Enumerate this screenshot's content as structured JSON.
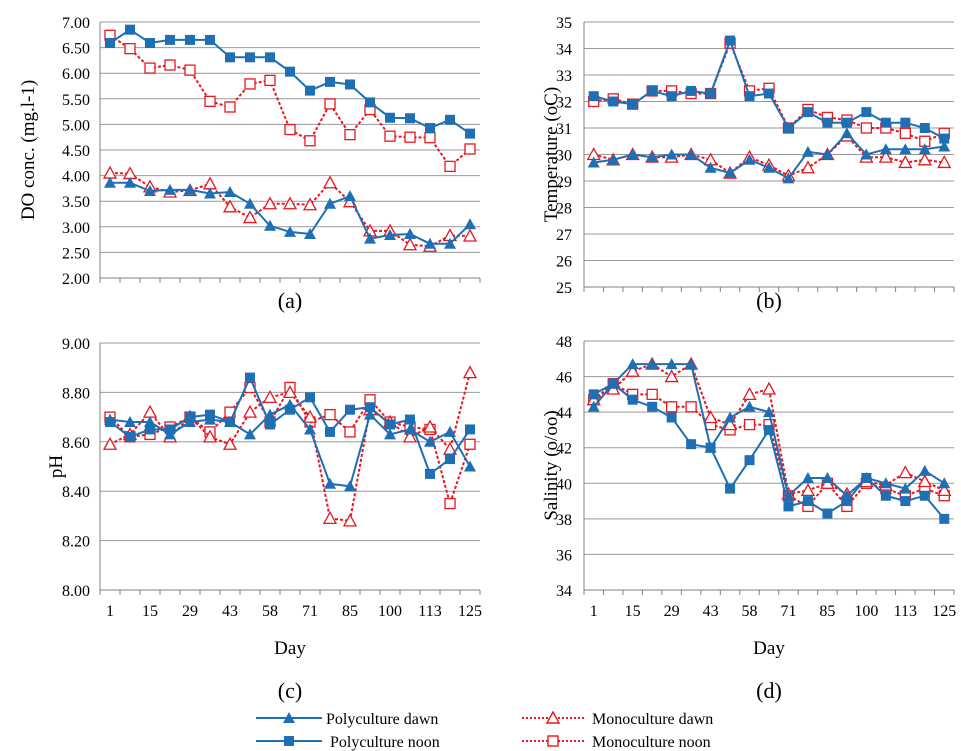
{
  "colors": {
    "polyculture": "#1f6fb4",
    "monoculture": "#e8161f",
    "grid": "#9a9a9a",
    "axis": "#808080"
  },
  "x_tick_labels": [
    "1",
    "15",
    "29",
    "43",
    "58",
    "71",
    "85",
    "100",
    "113",
    "125"
  ],
  "x_axis_label": "Day",
  "legend": {
    "poly_dawn": "Polyculture dawn",
    "mono_dawn": "Monoculture dawn",
    "poly_noon": "Polyculture noon",
    "mono_noon": "Monoculture noon"
  },
  "chart_data": [
    {
      "id": "a",
      "panel_label": "(a)",
      "type": "line",
      "ylabel": "DO conc. (mg.l-1)",
      "ylim": [
        2.0,
        7.0
      ],
      "yticks": [
        "2.00",
        "2.50",
        "3.00",
        "3.50",
        "4.00",
        "4.50",
        "5.00",
        "5.50",
        "6.00",
        "6.50",
        "7.00"
      ],
      "show_x_ticks": false,
      "series": [
        {
          "name": "Polyculture dawn",
          "values": [
            3.86,
            3.86,
            3.7,
            3.72,
            3.72,
            3.65,
            3.68,
            3.45,
            3.02,
            2.9,
            2.86,
            3.45,
            3.6,
            2.77,
            2.84,
            2.86,
            2.67,
            2.67,
            3.05
          ]
        },
        {
          "name": "Polyculture noon",
          "values": [
            6.59,
            6.85,
            6.59,
            6.65,
            6.65,
            6.65,
            6.31,
            6.31,
            6.31,
            6.03,
            5.66,
            5.83,
            5.78,
            5.43,
            5.13,
            5.12,
            4.93,
            5.09,
            4.82
          ]
        },
        {
          "name": "Monoculture dawn",
          "values": [
            4.05,
            4.04,
            3.78,
            3.68,
            3.71,
            3.84,
            3.39,
            3.18,
            3.45,
            3.45,
            3.43,
            3.86,
            3.49,
            2.92,
            2.92,
            2.65,
            2.62,
            2.83,
            2.82
          ]
        },
        {
          "name": "Monoculture noon",
          "values": [
            6.74,
            6.48,
            6.1,
            6.16,
            6.06,
            5.45,
            5.34,
            5.79,
            5.86,
            4.9,
            4.68,
            5.4,
            4.8,
            5.29,
            4.77,
            4.75,
            4.74,
            4.18,
            4.52
          ]
        }
      ]
    },
    {
      "id": "b",
      "panel_label": "(b)",
      "type": "line",
      "ylabel": "Temperature (oC)",
      "ylim": [
        25,
        35
      ],
      "yticks": [
        "25",
        "26",
        "27",
        "28",
        "29",
        "30",
        "31",
        "32",
        "33",
        "34",
        "35"
      ],
      "show_x_ticks": false,
      "series": [
        {
          "name": "Polyculture dawn",
          "values": [
            29.7,
            29.8,
            30.0,
            29.9,
            30.0,
            30.0,
            29.5,
            29.3,
            29.8,
            29.5,
            29.1,
            30.1,
            30.0,
            30.8,
            30.0,
            30.2,
            30.2,
            30.2,
            30.3
          ]
        },
        {
          "name": "Polyculture noon",
          "values": [
            32.2,
            32.0,
            31.9,
            32.4,
            32.2,
            32.4,
            32.3,
            34.3,
            32.2,
            32.3,
            31.0,
            31.6,
            31.2,
            31.2,
            31.6,
            31.2,
            31.2,
            31.0,
            30.6
          ]
        },
        {
          "name": "Monoculture dawn",
          "values": [
            30.0,
            29.8,
            30.0,
            29.9,
            29.9,
            30.0,
            29.8,
            29.3,
            29.9,
            29.6,
            29.2,
            29.5,
            30.0,
            30.7,
            29.9,
            29.9,
            29.7,
            29.8,
            29.7
          ]
        },
        {
          "name": "Monoculture noon",
          "values": [
            32.0,
            32.1,
            31.9,
            32.4,
            32.4,
            32.3,
            32.3,
            34.2,
            32.4,
            32.5,
            31.0,
            31.7,
            31.4,
            31.3,
            31.0,
            31.0,
            30.8,
            30.5,
            30.8
          ]
        }
      ]
    },
    {
      "id": "c",
      "panel_label": "(c)",
      "type": "line",
      "ylabel": "pH",
      "ylim": [
        8.0,
        9.0
      ],
      "yticks": [
        "8.00",
        "8.20",
        "8.40",
        "8.60",
        "8.80",
        "9.00"
      ],
      "show_x_ticks": true,
      "series": [
        {
          "name": "Polyculture dawn",
          "values": [
            8.69,
            8.68,
            8.68,
            8.63,
            8.68,
            8.69,
            8.68,
            8.63,
            8.71,
            8.75,
            8.65,
            8.43,
            8.42,
            8.71,
            8.63,
            8.65,
            8.6,
            8.64,
            8.5
          ]
        },
        {
          "name": "Polyculture noon",
          "values": [
            8.68,
            8.62,
            8.65,
            8.65,
            8.7,
            8.71,
            8.68,
            8.86,
            8.67,
            8.73,
            8.78,
            8.64,
            8.73,
            8.74,
            8.67,
            8.69,
            8.47,
            8.53,
            8.65
          ]
        },
        {
          "name": "Monoculture dawn",
          "values": [
            8.59,
            8.63,
            8.72,
            8.62,
            8.7,
            8.62,
            8.59,
            8.72,
            8.78,
            8.8,
            8.7,
            8.29,
            8.28,
            8.73,
            8.68,
            8.62,
            8.66,
            8.57,
            8.88
          ]
        },
        {
          "name": "Monoculture noon",
          "values": [
            8.7,
            8.62,
            8.63,
            8.66,
            8.7,
            8.64,
            8.72,
            8.82,
            8.68,
            8.82,
            8.68,
            8.71,
            8.64,
            8.77,
            8.68,
            8.66,
            8.65,
            8.35,
            8.59
          ]
        }
      ]
    },
    {
      "id": "d",
      "panel_label": "(d)",
      "type": "line",
      "ylabel": "Salinity (o/oo)",
      "ylim": [
        34,
        48
      ],
      "yticks": [
        "34",
        "36",
        "38",
        "40",
        "42",
        "44",
        "46",
        "48"
      ],
      "show_x_ticks": true,
      "series": [
        {
          "name": "Polyculture dawn",
          "values": [
            44.3,
            45.6,
            46.7,
            46.7,
            46.7,
            46.7,
            42.0,
            43.7,
            44.3,
            44.0,
            39.3,
            40.3,
            40.3,
            39.3,
            40.3,
            40.0,
            39.7,
            40.7,
            40.0
          ]
        },
        {
          "name": "Polyculture noon",
          "values": [
            45.0,
            45.6,
            44.7,
            44.3,
            43.7,
            42.2,
            42.0,
            39.7,
            41.3,
            43.0,
            38.7,
            39.0,
            38.3,
            39.0,
            40.3,
            39.3,
            39.0,
            39.3,
            38.0
          ]
        },
        {
          "name": "Monoculture dawn",
          "values": [
            44.7,
            45.3,
            46.3,
            46.7,
            46.0,
            46.7,
            43.7,
            43.3,
            45.0,
            45.3,
            39.4,
            39.6,
            40.0,
            39.4,
            40.1,
            39.9,
            40.6,
            40.1,
            39.6
          ]
        },
        {
          "name": "Monoculture noon",
          "values": [
            44.7,
            45.6,
            45.0,
            45.0,
            44.3,
            44.3,
            43.3,
            43.0,
            43.3,
            43.3,
            39.3,
            38.7,
            40.0,
            38.7,
            40.0,
            39.7,
            39.3,
            39.7,
            39.3
          ]
        }
      ]
    }
  ]
}
